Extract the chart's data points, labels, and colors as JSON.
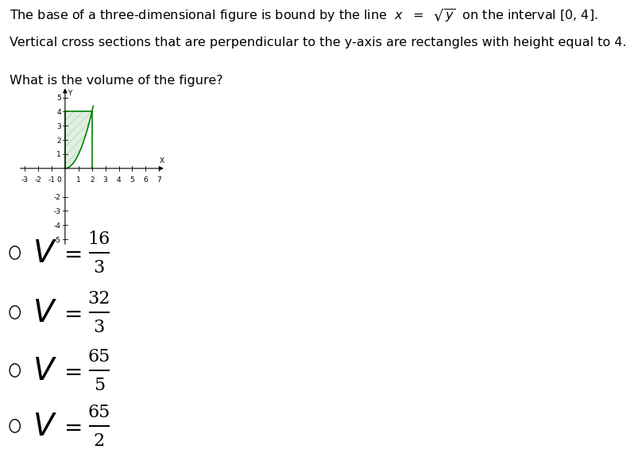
{
  "line1": "The base of a three-dimensional figure is bound by the line ",
  "line1_math": "$\\mathit{x}$ $=$ $\\sqrt{y}$",
  "line1_end": " on the interval [0, 4].",
  "line2": "Vertical cross sections that are perpendicular to the y-axis are rectangles with height equal to 4.",
  "question": "What is the volume of the figure?",
  "graph": {
    "xlim": [
      -3.5,
      7.5
    ],
    "ylim": [
      -5.5,
      5.8
    ],
    "curve_color": "#008000",
    "shade_color": "#008000",
    "shade_alpha": 0.12,
    "hatch": "///",
    "hatch_color": "#008000",
    "tick_fontsize": 6.5
  },
  "choices": [
    {
      "num": "16",
      "den": "3"
    },
    {
      "num": "32",
      "den": "3"
    },
    {
      "num": "65",
      "den": "5"
    },
    {
      "num": "65",
      "den": "2"
    }
  ],
  "bg_color": "#ffffff",
  "text_color": "#000000"
}
